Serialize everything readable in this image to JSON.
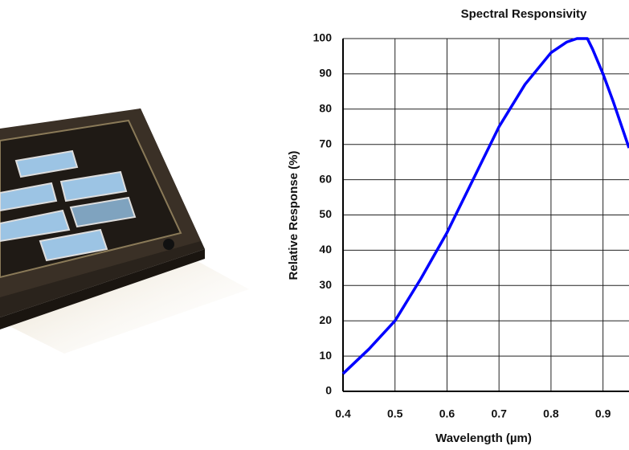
{
  "chart_data": {
    "type": "line",
    "title": "Spectral Responsivity",
    "xlabel": "Wavelength (µm)",
    "ylabel": "Relative Response (%)",
    "x": [
      0.4,
      0.45,
      0.5,
      0.55,
      0.6,
      0.65,
      0.7,
      0.75,
      0.8,
      0.83,
      0.85,
      0.87,
      0.88,
      0.9,
      0.92,
      0.95
    ],
    "series": [
      {
        "name": "Relative Response",
        "color": "#0000ff",
        "values": [
          5,
          12,
          20,
          32,
          45,
          60,
          75,
          87,
          96,
          99,
          100,
          100,
          97,
          90,
          82,
          69
        ]
      }
    ],
    "xlim": [
      0.4,
      0.95
    ],
    "xticks": [
      0.4,
      0.5,
      0.6,
      0.7,
      0.8,
      0.9
    ],
    "ylim": [
      0,
      100
    ],
    "yticks": [
      0,
      10,
      20,
      30,
      40,
      50,
      60,
      70,
      80,
      90,
      100
    ],
    "grid": true
  }
}
